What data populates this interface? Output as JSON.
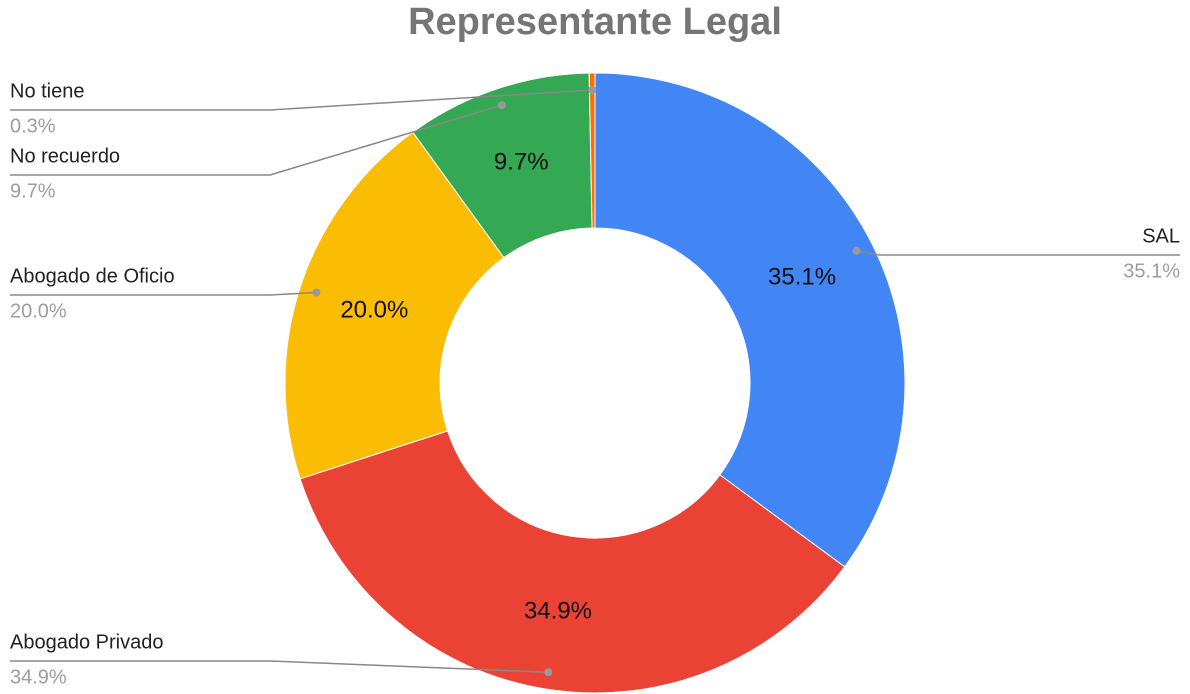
{
  "chart_data": {
    "type": "donut",
    "title": "Representante Legal",
    "categories": [
      "SAL",
      "Abogado Privado",
      "Abogado de Oficio",
      "No recuerdo",
      "No tiene"
    ],
    "values": [
      35.1,
      34.9,
      20,
      9.7,
      0.3
    ],
    "value_labels": [
      "35.1%",
      "34.9%",
      "20.0%",
      "9.7%",
      "0.3%"
    ],
    "colors": [
      "#4285f4",
      "#ea4335",
      "#fbbc04",
      "#34a853",
      "#ff6d01"
    ]
  }
}
